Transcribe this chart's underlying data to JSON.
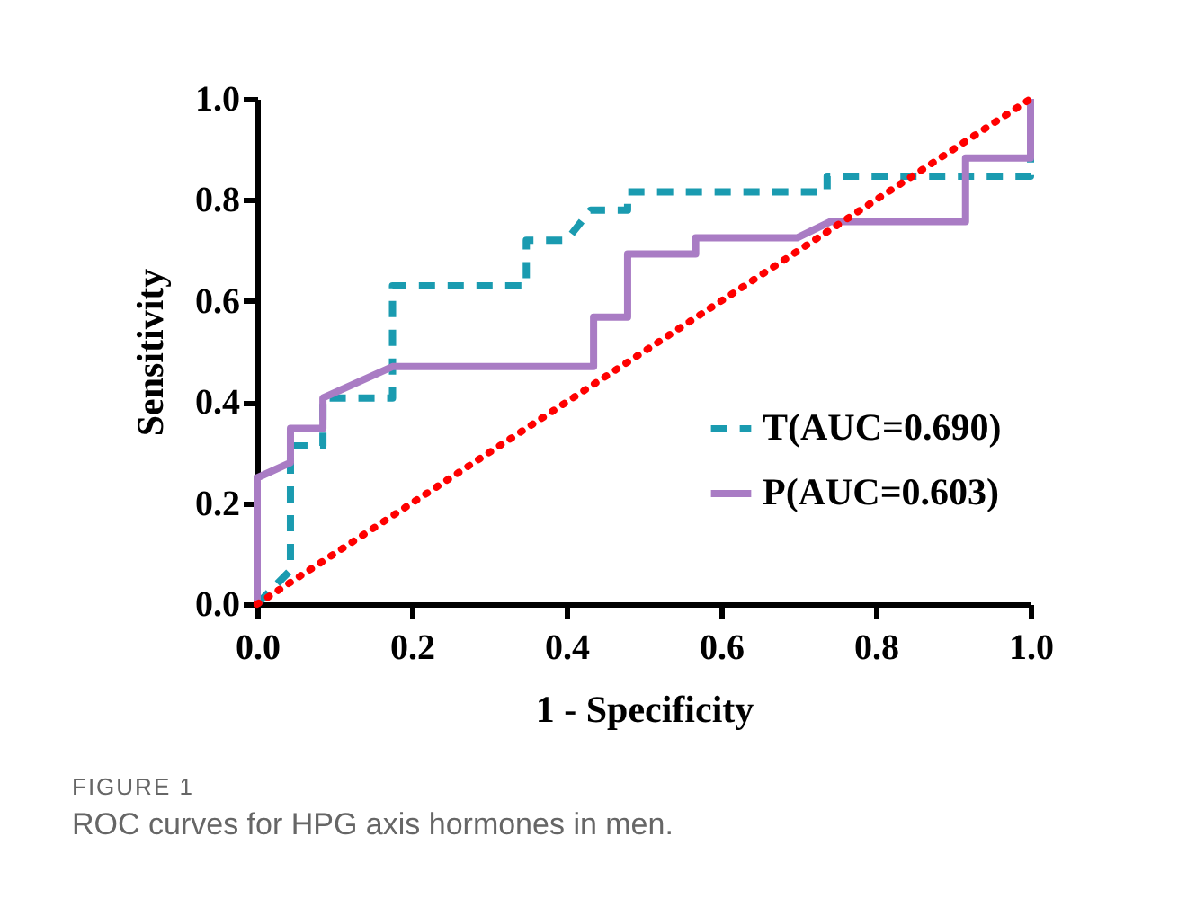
{
  "chart_data": {
    "type": "line",
    "xlabel": "1 - Specificity",
    "ylabel": "Sensitivity",
    "xlim": [
      0,
      1
    ],
    "ylim": [
      0,
      1
    ],
    "xticks": [
      {
        "value": 0,
        "label": "0.0"
      },
      {
        "value": 0.2,
        "label": "0.2"
      },
      {
        "value": 0.4,
        "label": "0.4"
      },
      {
        "value": 0.6,
        "label": "0.6"
      },
      {
        "value": 0.8,
        "label": "0.8"
      },
      {
        "value": 1,
        "label": "1.0"
      }
    ],
    "yticks": [
      {
        "value": 0,
        "label": "0.0"
      },
      {
        "value": 0.2,
        "label": "0.2"
      },
      {
        "value": 0.4,
        "label": "0.4"
      },
      {
        "value": 0.6,
        "label": "0.6"
      },
      {
        "value": 0.8,
        "label": "0.8"
      },
      {
        "value": 1,
        "label": "1.0"
      }
    ],
    "grid": false,
    "legend": "bottom right",
    "marker": "none",
    "annotations": [
      "FIGURE 1",
      "ROC curves for HPG axis hormones in men."
    ],
    "series": [
      {
        "name": "T(AUC=0.690)",
        "color": "#1a9bb0",
        "line_style": "dashed",
        "x": [
          0,
          0.043,
          0.043,
          0.085,
          0.085,
          0.175,
          0.175,
          0.348,
          0.348,
          0.4,
          0.431,
          0.479,
          0.479,
          0.737,
          0.737,
          0.97,
          1,
          1
        ],
        "values": [
          0,
          0.067,
          0.313,
          0.313,
          0.408,
          0.408,
          0.63,
          0.63,
          0.72,
          0.72,
          0.78,
          0.78,
          0.816,
          0.816,
          0.847,
          0.847,
          0.847,
          1
        ]
      },
      {
        "name": "P(AUC=0.603)",
        "color": "#a97cc4",
        "line_style": "solid",
        "x": [
          0,
          0,
          0.043,
          0.043,
          0.085,
          0.085,
          0.175,
          0.435,
          0.435,
          0.479,
          0.479,
          0.567,
          0.567,
          0.698,
          0.741,
          0.916,
          0.916,
          1,
          1
        ],
        "values": [
          0,
          0.25,
          0.28,
          0.348,
          0.348,
          0.408,
          0.47,
          0.47,
          0.568,
          0.568,
          0.693,
          0.693,
          0.725,
          0.725,
          0.757,
          0.757,
          0.883,
          0.883,
          1
        ]
      },
      {
        "color": "#ff0000",
        "line_style": "dotted",
        "x": [
          0,
          1
        ],
        "values": [
          0,
          1
        ]
      }
    ]
  }
}
